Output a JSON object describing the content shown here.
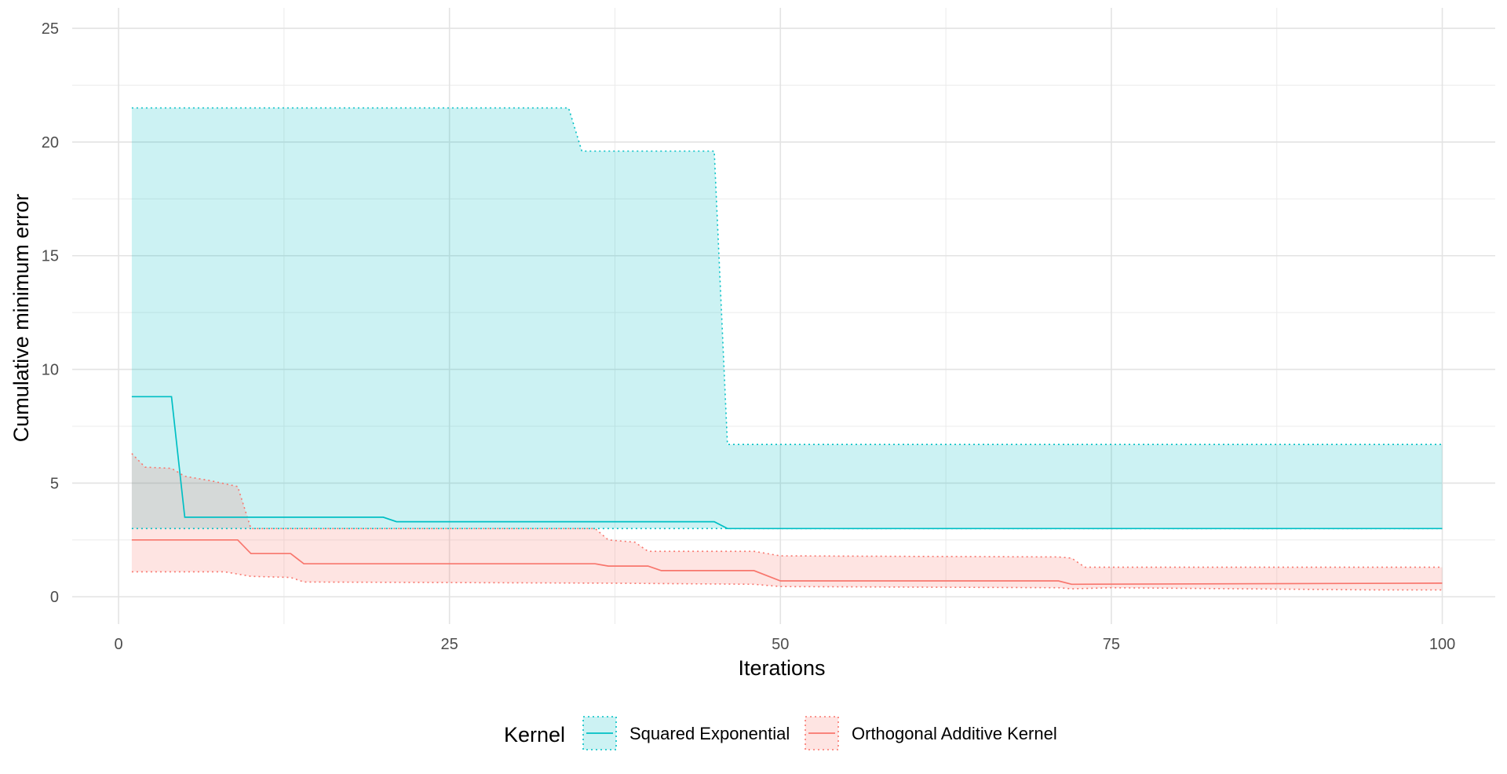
{
  "chart_data": {
    "type": "line",
    "xlabel": "Iterations",
    "ylabel": "Cumulative minimum error",
    "xlim": [
      -3.5,
      104
    ],
    "ylim": [
      -1.2,
      25.9
    ],
    "xticks": [
      0,
      25,
      50,
      75,
      100
    ],
    "yticks": [
      0,
      5,
      10,
      15,
      20,
      25
    ],
    "grid": true,
    "legend": {
      "title": "Kernel",
      "position": "bottom"
    },
    "series": [
      {
        "name": "Squared Exponential",
        "color": "#00bfc4",
        "fill": "#00bfc4",
        "line": [
          [
            1,
            8.8
          ],
          [
            4,
            8.8
          ],
          [
            5,
            3.5
          ],
          [
            20,
            3.5
          ],
          [
            21,
            3.3
          ],
          [
            45,
            3.3
          ],
          [
            46,
            3.0
          ],
          [
            100,
            3.0
          ]
        ],
        "upper": [
          [
            1,
            21.5
          ],
          [
            34,
            21.5
          ],
          [
            35,
            19.6
          ],
          [
            45,
            19.6
          ],
          [
            46,
            6.7
          ],
          [
            100,
            6.7
          ]
        ],
        "lower": [
          [
            1,
            3.0
          ],
          [
            100,
            3.0
          ]
        ]
      },
      {
        "name": "Orthogonal Additive Kernel",
        "color": "#f8766d",
        "fill": "#f8766d",
        "line": [
          [
            1,
            2.5
          ],
          [
            9,
            2.5
          ],
          [
            10,
            1.9
          ],
          [
            13,
            1.9
          ],
          [
            14,
            1.45
          ],
          [
            36,
            1.45
          ],
          [
            37,
            1.35
          ],
          [
            40,
            1.35
          ],
          [
            41,
            1.15
          ],
          [
            48,
            1.15
          ],
          [
            50,
            0.7
          ],
          [
            71,
            0.7
          ],
          [
            72,
            0.55
          ],
          [
            100,
            0.6
          ]
        ],
        "upper": [
          [
            1,
            6.3
          ],
          [
            2,
            5.7
          ],
          [
            4,
            5.65
          ],
          [
            5,
            5.3
          ],
          [
            7,
            5.1
          ],
          [
            9,
            4.85
          ],
          [
            10,
            3.0
          ],
          [
            36,
            3.0
          ],
          [
            37,
            2.5
          ],
          [
            39,
            2.4
          ],
          [
            40,
            2.0
          ],
          [
            48,
            2.0
          ],
          [
            50,
            1.8
          ],
          [
            71,
            1.75
          ],
          [
            72,
            1.7
          ],
          [
            73,
            1.3
          ],
          [
            100,
            1.3
          ]
        ],
        "lower": [
          [
            1,
            1.1
          ],
          [
            8,
            1.1
          ],
          [
            10,
            0.9
          ],
          [
            13,
            0.85
          ],
          [
            14,
            0.65
          ],
          [
            37,
            0.6
          ],
          [
            48,
            0.55
          ],
          [
            50,
            0.45
          ],
          [
            71,
            0.4
          ],
          [
            72,
            0.35
          ],
          [
            75,
            0.4
          ],
          [
            95,
            0.3
          ],
          [
            100,
            0.3
          ]
        ]
      }
    ]
  }
}
